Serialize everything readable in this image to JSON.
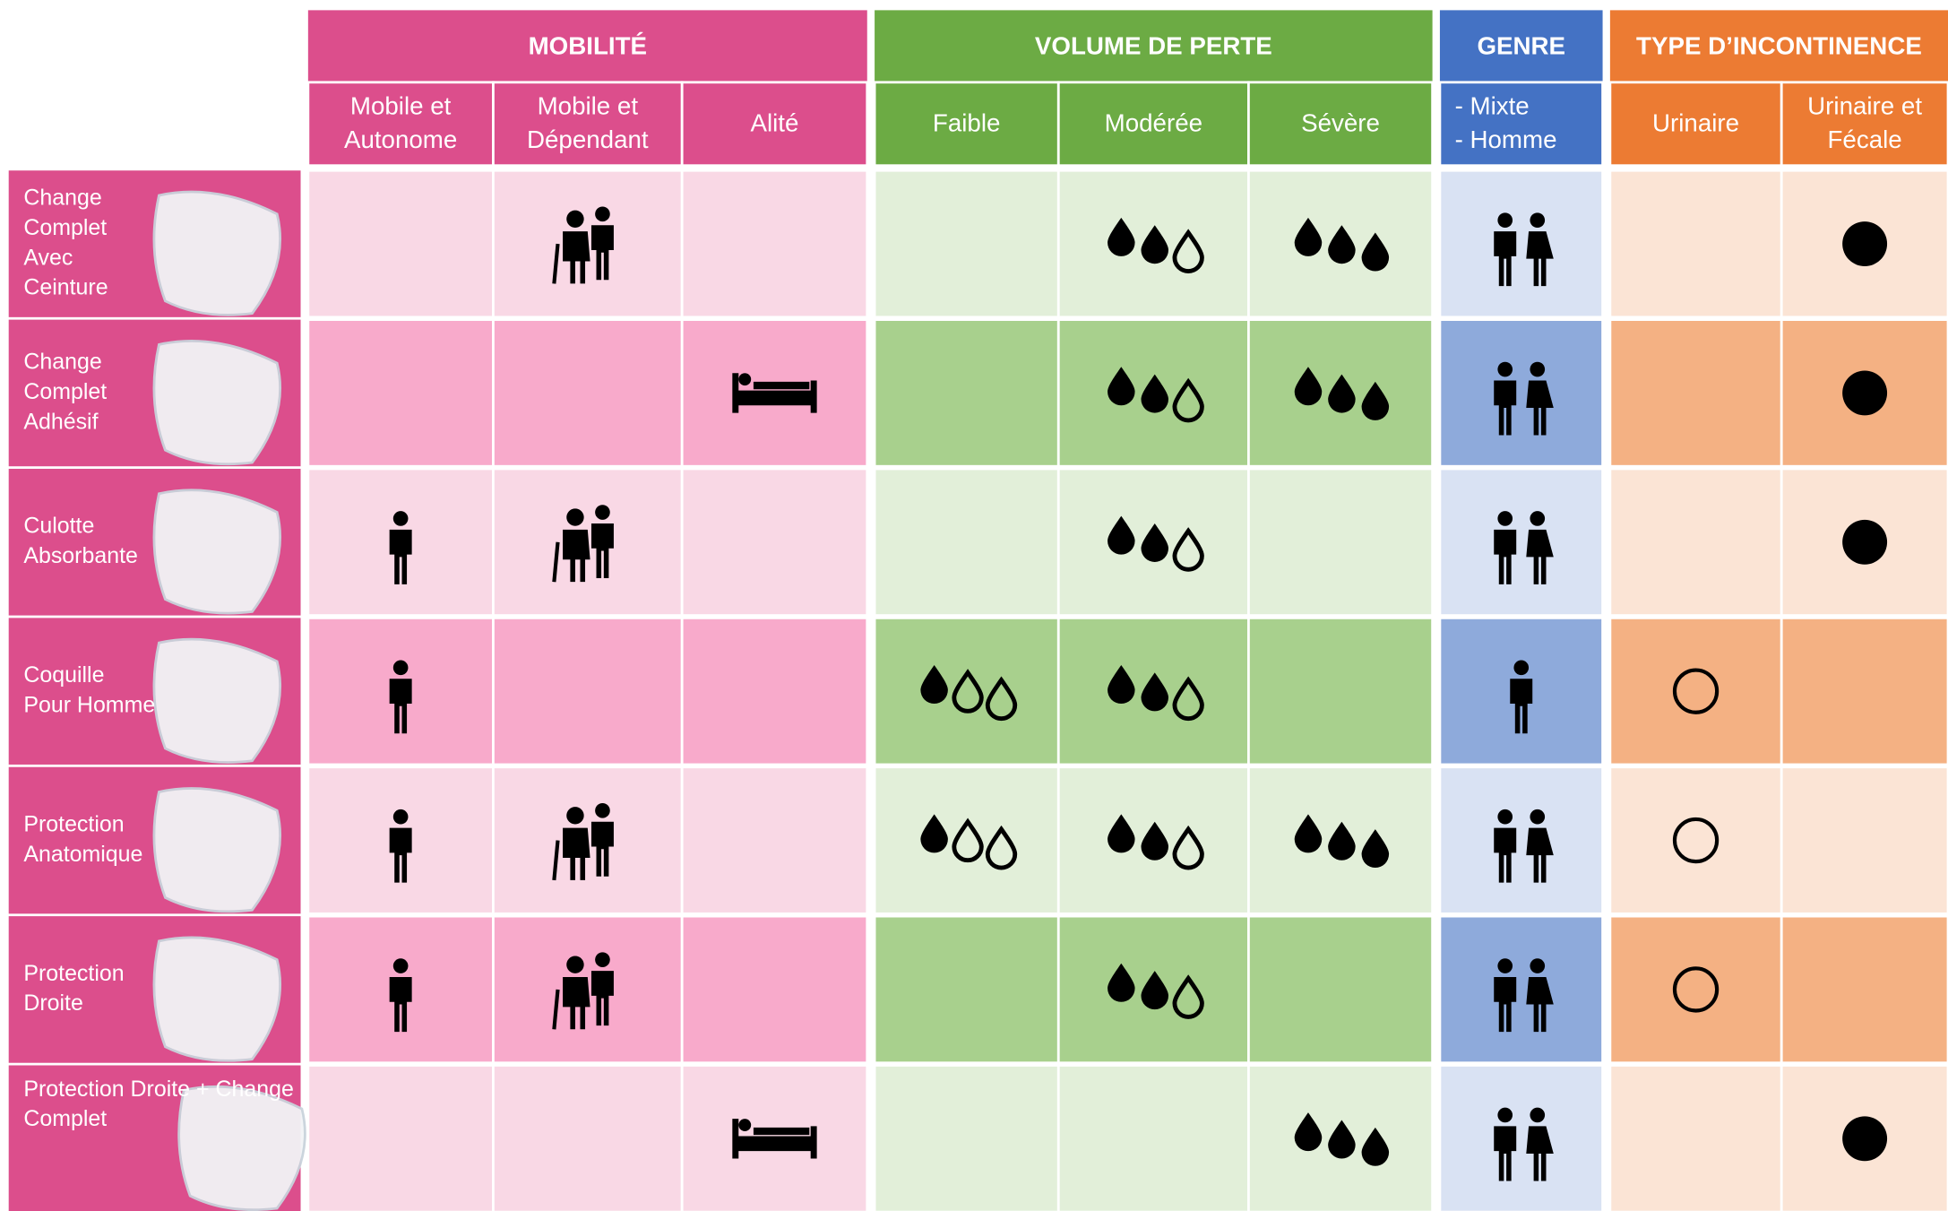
{
  "header": {
    "groups": [
      "MOBILITÉ",
      "VOLUME DE PERTE",
      "GENRE",
      "TYPE D’INCONTINENCE"
    ],
    "columns": [
      [
        "Mobile et",
        "Autonome"
      ],
      [
        "Mobile et",
        "Dépendant"
      ],
      [
        "Alité"
      ],
      [
        "Faible"
      ],
      [
        "Modérée"
      ],
      [
        "Sévère"
      ],
      [
        "- Mixte",
        "- Homme"
      ],
      [
        "Urinaire"
      ],
      [
        "Urinaire et",
        "Fécale"
      ]
    ]
  },
  "rows": [
    {
      "label": [
        "Change",
        "Complet",
        "Avec",
        "Ceinture"
      ]
    },
    {
      "label": [
        "Change",
        "Complet",
        "Adhésif"
      ]
    },
    {
      "label": [
        "Culotte",
        "Absorbante"
      ]
    },
    {
      "label": [
        "Coquille",
        "Pour Homme"
      ]
    },
    {
      "label": [
        "Protection",
        "Anatomique"
      ]
    },
    {
      "label": [
        "Protection",
        "Droite"
      ]
    },
    {
      "label": [
        "Protection Droite + Change",
        "Complet"
      ]
    }
  ]
}
